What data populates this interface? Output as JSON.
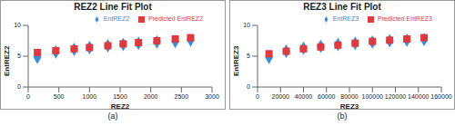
{
  "chart_data": [
    {
      "type": "scatter",
      "title": "REZ2 Line Fit  Plot",
      "x_label": "REZ2",
      "y_label": "EntREZ2",
      "annotation": "(a)",
      "x": [
        150,
        450,
        750,
        1000,
        1300,
        1550,
        1800,
        2100,
        2400,
        2650
      ],
      "series": [
        {
          "name": "EntREZ2",
          "color": "#3c8dd8",
          "marker": "diamond",
          "values": [
            4.8,
            5.7,
            6.1,
            6.4,
            6.7,
            6.9,
            7.1,
            7.3,
            7.4,
            7.6
          ]
        },
        {
          "name": "Predicted EntREZ2",
          "color": "#e0393e",
          "marker": "square",
          "values": [
            5.6,
            5.9,
            6.2,
            6.4,
            6.7,
            7.0,
            7.2,
            7.5,
            7.8,
            8.0
          ]
        }
      ],
      "xlim": [
        0,
        3000
      ],
      "xticks": [
        0,
        500,
        1000,
        1500,
        2000,
        2500,
        3000
      ],
      "ylim": [
        0,
        10
      ],
      "yticks": [
        0,
        5,
        10
      ],
      "grid": false,
      "legend": "top"
    },
    {
      "type": "scatter",
      "title": "REZ3 Line Fit  Plot",
      "x_label": "REZ3",
      "y_label": "EntREZ3",
      "annotation": "(b)",
      "x": [
        10000,
        25000,
        40000,
        55000,
        70000,
        85000,
        100000,
        115000,
        130000,
        145000
      ],
      "series": [
        {
          "name": "EntREZ3",
          "color": "#3c8dd8",
          "marker": "diamond",
          "values": [
            4.8,
            5.8,
            6.3,
            6.6,
            6.9,
            7.1,
            7.3,
            7.5,
            7.6,
            7.7
          ]
        },
        {
          "name": "Predicted EntREZ3",
          "color": "#e0393e",
          "marker": "square",
          "values": [
            5.4,
            5.8,
            6.2,
            6.5,
            6.8,
            7.1,
            7.4,
            7.6,
            7.8,
            8.0
          ]
        }
      ],
      "xlim": [
        0,
        160000
      ],
      "xticks": [
        0,
        20000,
        40000,
        60000,
        80000,
        100000,
        120000,
        140000,
        160000
      ],
      "ylim": [
        0,
        10
      ],
      "yticks": [
        0,
        5,
        10
      ],
      "grid": false,
      "legend": "top"
    }
  ]
}
